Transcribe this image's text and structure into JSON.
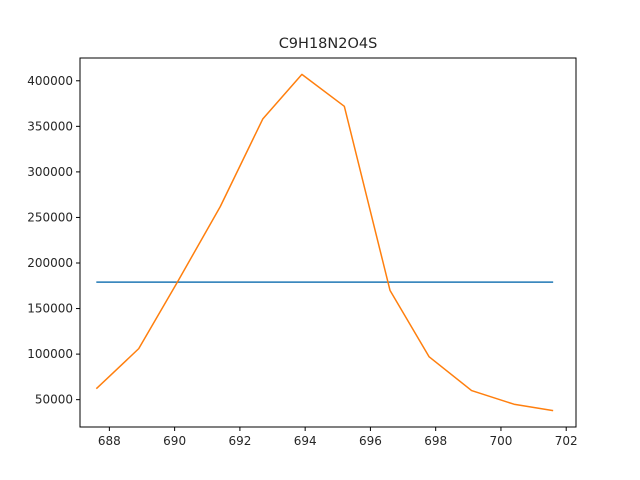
{
  "chart_data": {
    "type": "line",
    "title": "C9H18N2O4S",
    "xlabel": "",
    "ylabel": "",
    "xlim": [
      687.1,
      702.3
    ],
    "ylim": [
      20000,
      425000
    ],
    "xticks": [
      688,
      690,
      692,
      694,
      696,
      698,
      700,
      702
    ],
    "yticks": [
      50000,
      100000,
      150000,
      200000,
      250000,
      300000,
      350000,
      400000
    ],
    "grid": false,
    "series": [
      {
        "color": "#1f77b4",
        "x": [
          687.6,
          701.6
        ],
        "y": [
          179000,
          179000
        ]
      },
      {
        "color": "#ff7f0e",
        "x": [
          687.6,
          688.9,
          690.1,
          691.4,
          692.7,
          693.9,
          695.2,
          696.6,
          697.8,
          699.1,
          700.4,
          701.6
        ],
        "y": [
          62000,
          106000,
          180000,
          262000,
          358000,
          407000,
          372000,
          170000,
          97000,
          60000,
          45000,
          38000
        ]
      }
    ]
  }
}
